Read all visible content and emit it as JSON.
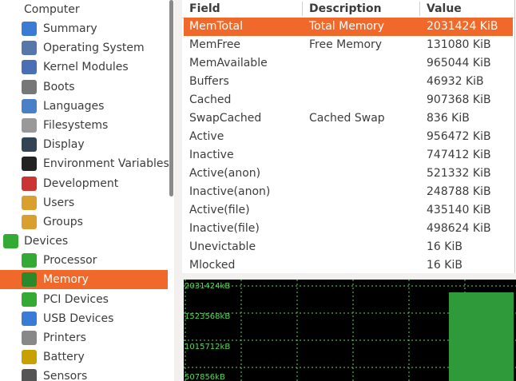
{
  "sidebar": [
    {
      "label": "Computer",
      "children": [
        "Summary",
        "Operating System",
        "Kernel Modules",
        "Boots",
        "Languages",
        "Filesystems",
        "Display",
        "Environment Variables",
        "Development",
        "Users",
        "Groups"
      ]
    },
    {
      "label": "Devices",
      "children": [
        "Processor",
        "Memory",
        "PCI Devices",
        "USB Devices",
        "Printers",
        "Battery",
        "Sensors"
      ]
    }
  ],
  "table": {
    "columns": [
      "Field",
      "Description",
      "Value"
    ],
    "rows": [
      [
        "MemTotal",
        "Total Memory",
        "2031424 KiB"
      ],
      [
        "MemFree",
        "Free Memory",
        "131080 KiB"
      ],
      [
        "MemAvailable",
        "",
        "965044 KiB"
      ],
      [
        "Buffers",
        "",
        "46932 KiB"
      ],
      [
        "Cached",
        "",
        "907368 KiB"
      ],
      [
        "SwapCached",
        "Cached Swap",
        "836 KiB"
      ],
      [
        "Active",
        "",
        "956472 KiB"
      ],
      [
        "Inactive",
        "",
        "747412 KiB"
      ],
      [
        "Active(anon)",
        "",
        "521332 KiB"
      ],
      [
        "Inactive(anon)",
        "",
        "248788 KiB"
      ],
      [
        "Active(file)",
        "",
        "435140 KiB"
      ],
      [
        "Inactive(file)",
        "",
        "498624 KiB"
      ],
      [
        "Unevictable",
        "",
        "16 KiB"
      ],
      [
        "Mlocked",
        "",
        "16 KiB"
      ]
    ]
  },
  "graph": {
    "labels": [
      "2031424kB",
      "1523568kB",
      "1015712kB",
      "507856kB"
    ]
  }
}
